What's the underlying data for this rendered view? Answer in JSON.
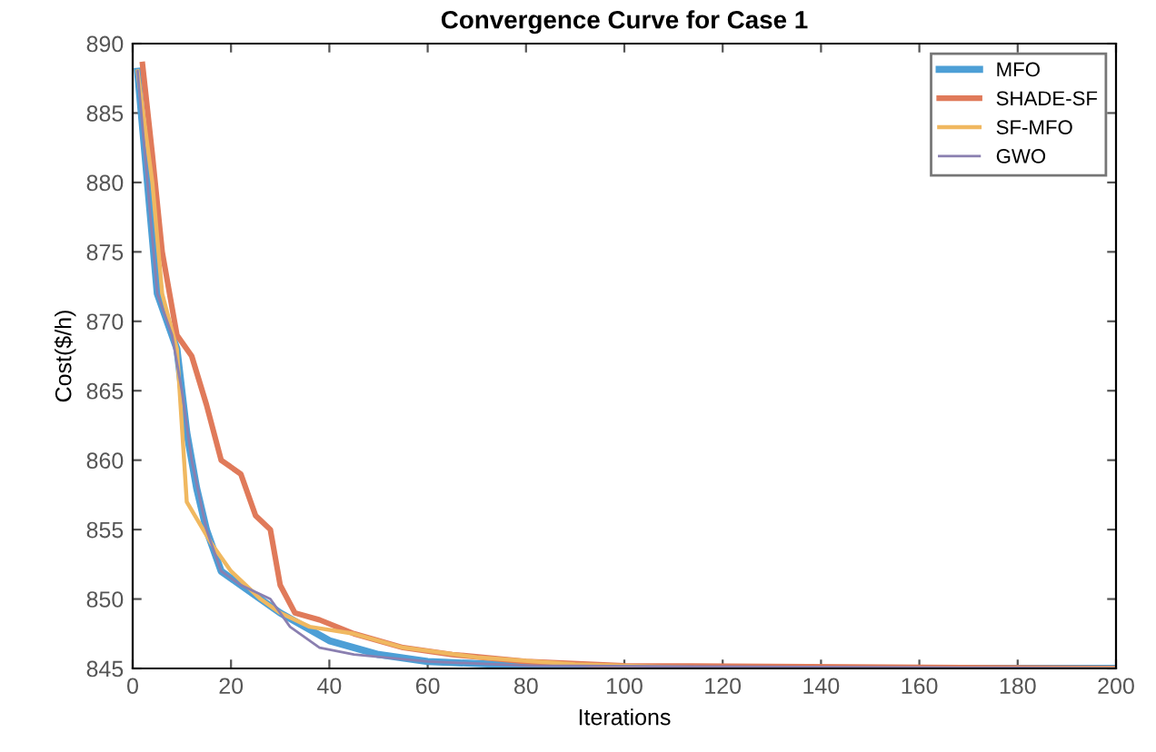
{
  "chart_data": {
    "type": "line",
    "title": "Convergence Curve for Case 1",
    "xlabel": "Iterations",
    "ylabel": "Cost($/h)",
    "xlim": [
      0,
      200
    ],
    "ylim": [
      845,
      890
    ],
    "xticks": [
      0,
      20,
      40,
      60,
      80,
      100,
      120,
      140,
      160,
      180,
      200
    ],
    "yticks": [
      845,
      850,
      855,
      860,
      865,
      870,
      875,
      880,
      885,
      890
    ],
    "grid": false,
    "legend": "top right",
    "line_style": "solid",
    "marker": "none",
    "series": [
      {
        "name": "MFO",
        "color": "#4d9fd6",
        "x": [
          1,
          5,
          9,
          11,
          13,
          15,
          18,
          22,
          26,
          30,
          35,
          40,
          50,
          60,
          80,
          100,
          200
        ],
        "values": [
          888,
          872,
          868,
          862,
          858,
          855,
          852,
          851,
          850,
          849,
          848,
          847,
          846,
          845.5,
          845.2,
          845,
          845
        ]
      },
      {
        "name": "SHADE-SF",
        "color": "#e07a5a",
        "x": [
          2,
          4,
          6,
          9,
          12,
          15,
          18,
          22,
          25,
          28,
          30,
          33,
          38,
          45,
          55,
          65,
          80,
          100,
          200
        ],
        "values": [
          888.5,
          882,
          875,
          869,
          867.5,
          864,
          860,
          859,
          856,
          855,
          851,
          849,
          848.5,
          847.5,
          846.5,
          846,
          845.5,
          845.2,
          845
        ]
      },
      {
        "name": "SF-MFO",
        "color": "#f0b860",
        "x": [
          1,
          4,
          6,
          9,
          11,
          16,
          20,
          26,
          30,
          36,
          45,
          55,
          70,
          90,
          120,
          200
        ],
        "values": [
          888,
          880,
          872,
          868,
          857,
          854,
          852,
          850,
          849,
          848,
          847.5,
          846.5,
          845.8,
          845.3,
          845,
          845
        ]
      },
      {
        "name": "GWO",
        "color": "#8a7fb0",
        "x": [
          1,
          5,
          8,
          10,
          12,
          15,
          18,
          22,
          28,
          32,
          38,
          45,
          60,
          80,
          200
        ],
        "values": [
          888,
          872,
          869,
          865,
          860,
          855,
          852,
          851,
          850,
          848,
          846.5,
          846,
          845.5,
          845.2,
          845
        ]
      }
    ]
  }
}
